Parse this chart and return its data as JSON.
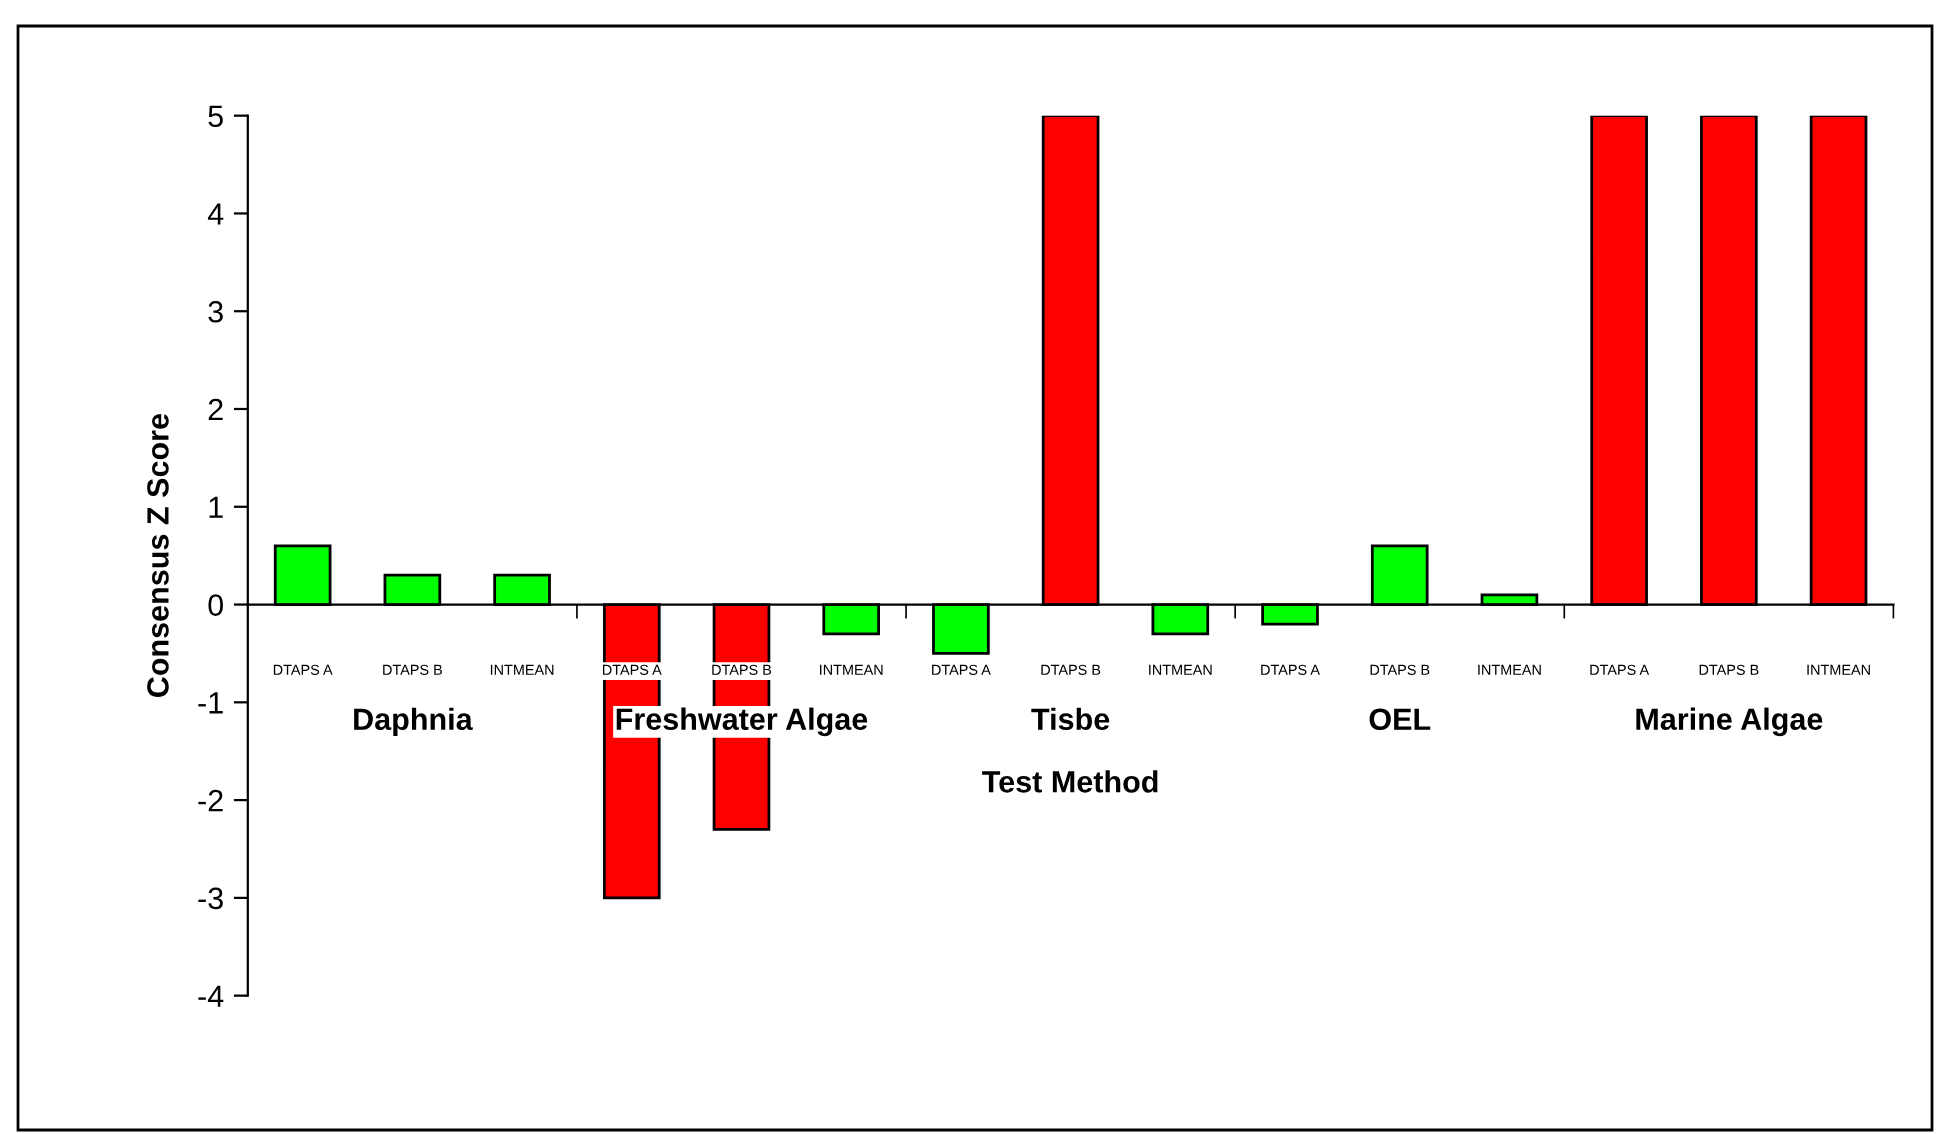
{
  "chart_data": {
    "type": "bar",
    "ylabel": "Consensus Z Score",
    "xlabel": "Test Method",
    "categories": [
      "DTAPS A",
      "DTAPS B",
      "INTMEAN",
      "DTAPS A",
      "DTAPS B",
      "INTMEAN",
      "DTAPS A",
      "DTAPS B",
      "INTMEAN",
      "DTAPS A",
      "DTAPS B",
      "INTMEAN",
      "DTAPS A",
      "DTAPS B",
      "INTMEAN"
    ],
    "values": [
      0.6,
      0.3,
      0.3,
      -3.0,
      -2.3,
      -0.3,
      -0.5,
      5,
      -0.3,
      -0.2,
      0.6,
      0.1,
      5,
      5,
      5
    ],
    "colors": [
      "#00ff00",
      "#00ff00",
      "#00ff00",
      "#ff0000",
      "#ff0000",
      "#00ff00",
      "#00ff00",
      "#ff0000",
      "#00ff00",
      "#00ff00",
      "#00ff00",
      "#00ff00",
      "#ff0000",
      "#ff0000",
      "#ff0000"
    ],
    "annotations": [
      "Daphnia",
      "Freshwater Algae",
      "Tisbe",
      "OEL",
      "Marine Algae"
    ],
    "ylim": [
      -4,
      5
    ],
    "yticks": [
      -4,
      -3,
      -2,
      -1,
      0,
      1,
      2,
      3,
      4,
      5
    ],
    "legend": false
  }
}
